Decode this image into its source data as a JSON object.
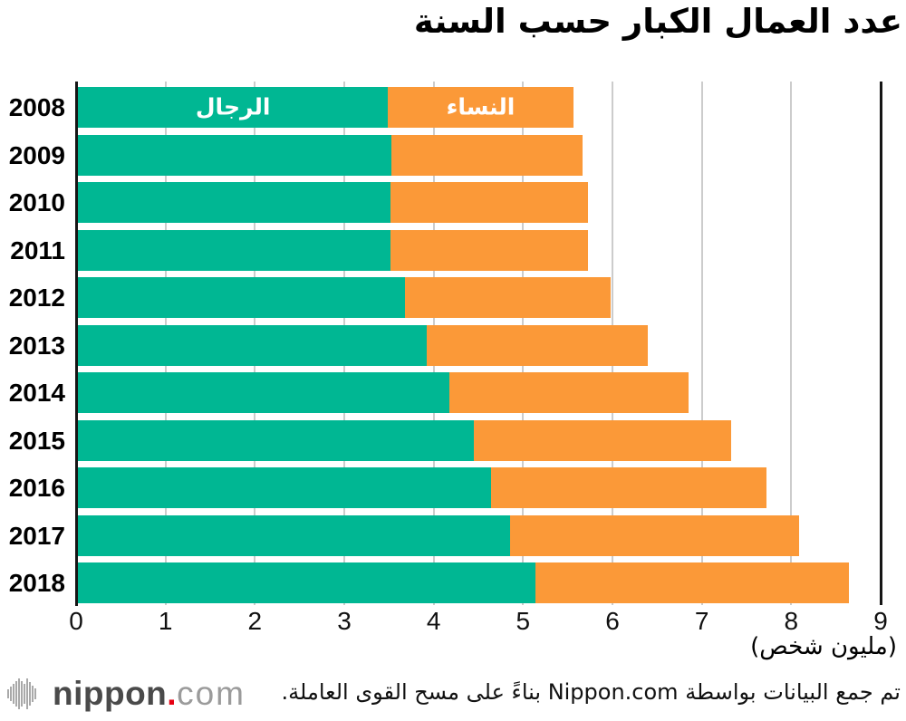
{
  "title": "عدد العمال الكبار حسب السنة",
  "legend": {
    "men": "الرجال",
    "women": "النساء"
  },
  "colors": {
    "men": "#00B793",
    "women": "#FB9938",
    "grid": "#cccccc",
    "axis": "#151515",
    "logo_red": "#e60012",
    "logo_dark": "#4a4a4a",
    "logo_light": "#9b9b9b"
  },
  "axis": {
    "ticks": [
      "0",
      "1",
      "2",
      "3",
      "4",
      "5",
      "6",
      "7",
      "8",
      "9"
    ],
    "unit_label": "(مليون شخص)",
    "min": 0,
    "max": 9
  },
  "chart_data": {
    "type": "bar",
    "orientation": "horizontal",
    "stacked": true,
    "title": "عدد العمال الكبار حسب السنة",
    "xlabel": "(مليون شخص)",
    "xlim": [
      0,
      9
    ],
    "grid": true,
    "legend_position": "inside-first-bar",
    "categories": [
      "2008",
      "2009",
      "2010",
      "2011",
      "2012",
      "2013",
      "2014",
      "2015",
      "2016",
      "2017",
      "2018"
    ],
    "series": [
      {
        "name": "الرجال",
        "color": "#00B793",
        "values": [
          3.47,
          3.51,
          3.5,
          3.5,
          3.66,
          3.9,
          4.16,
          4.43,
          4.62,
          4.83,
          5.12
        ]
      },
      {
        "name": "النساء",
        "color": "#FB9938",
        "values": [
          2.07,
          2.14,
          2.21,
          2.21,
          2.3,
          2.47,
          2.67,
          2.88,
          3.08,
          3.24,
          3.5
        ]
      }
    ],
    "totals": [
      5.54,
      5.65,
      5.71,
      5.71,
      5.96,
      6.37,
      6.83,
      7.31,
      7.7,
      8.07,
      8.62
    ]
  },
  "footer": {
    "attribution": "تم جمع البيانات بواسطة Nippon.com بناءً على مسح القوى العاملة.",
    "logo": {
      "name": "nippon",
      "dot": ".",
      "tld": "com",
      "mark": "waveform-bars-icon"
    }
  }
}
